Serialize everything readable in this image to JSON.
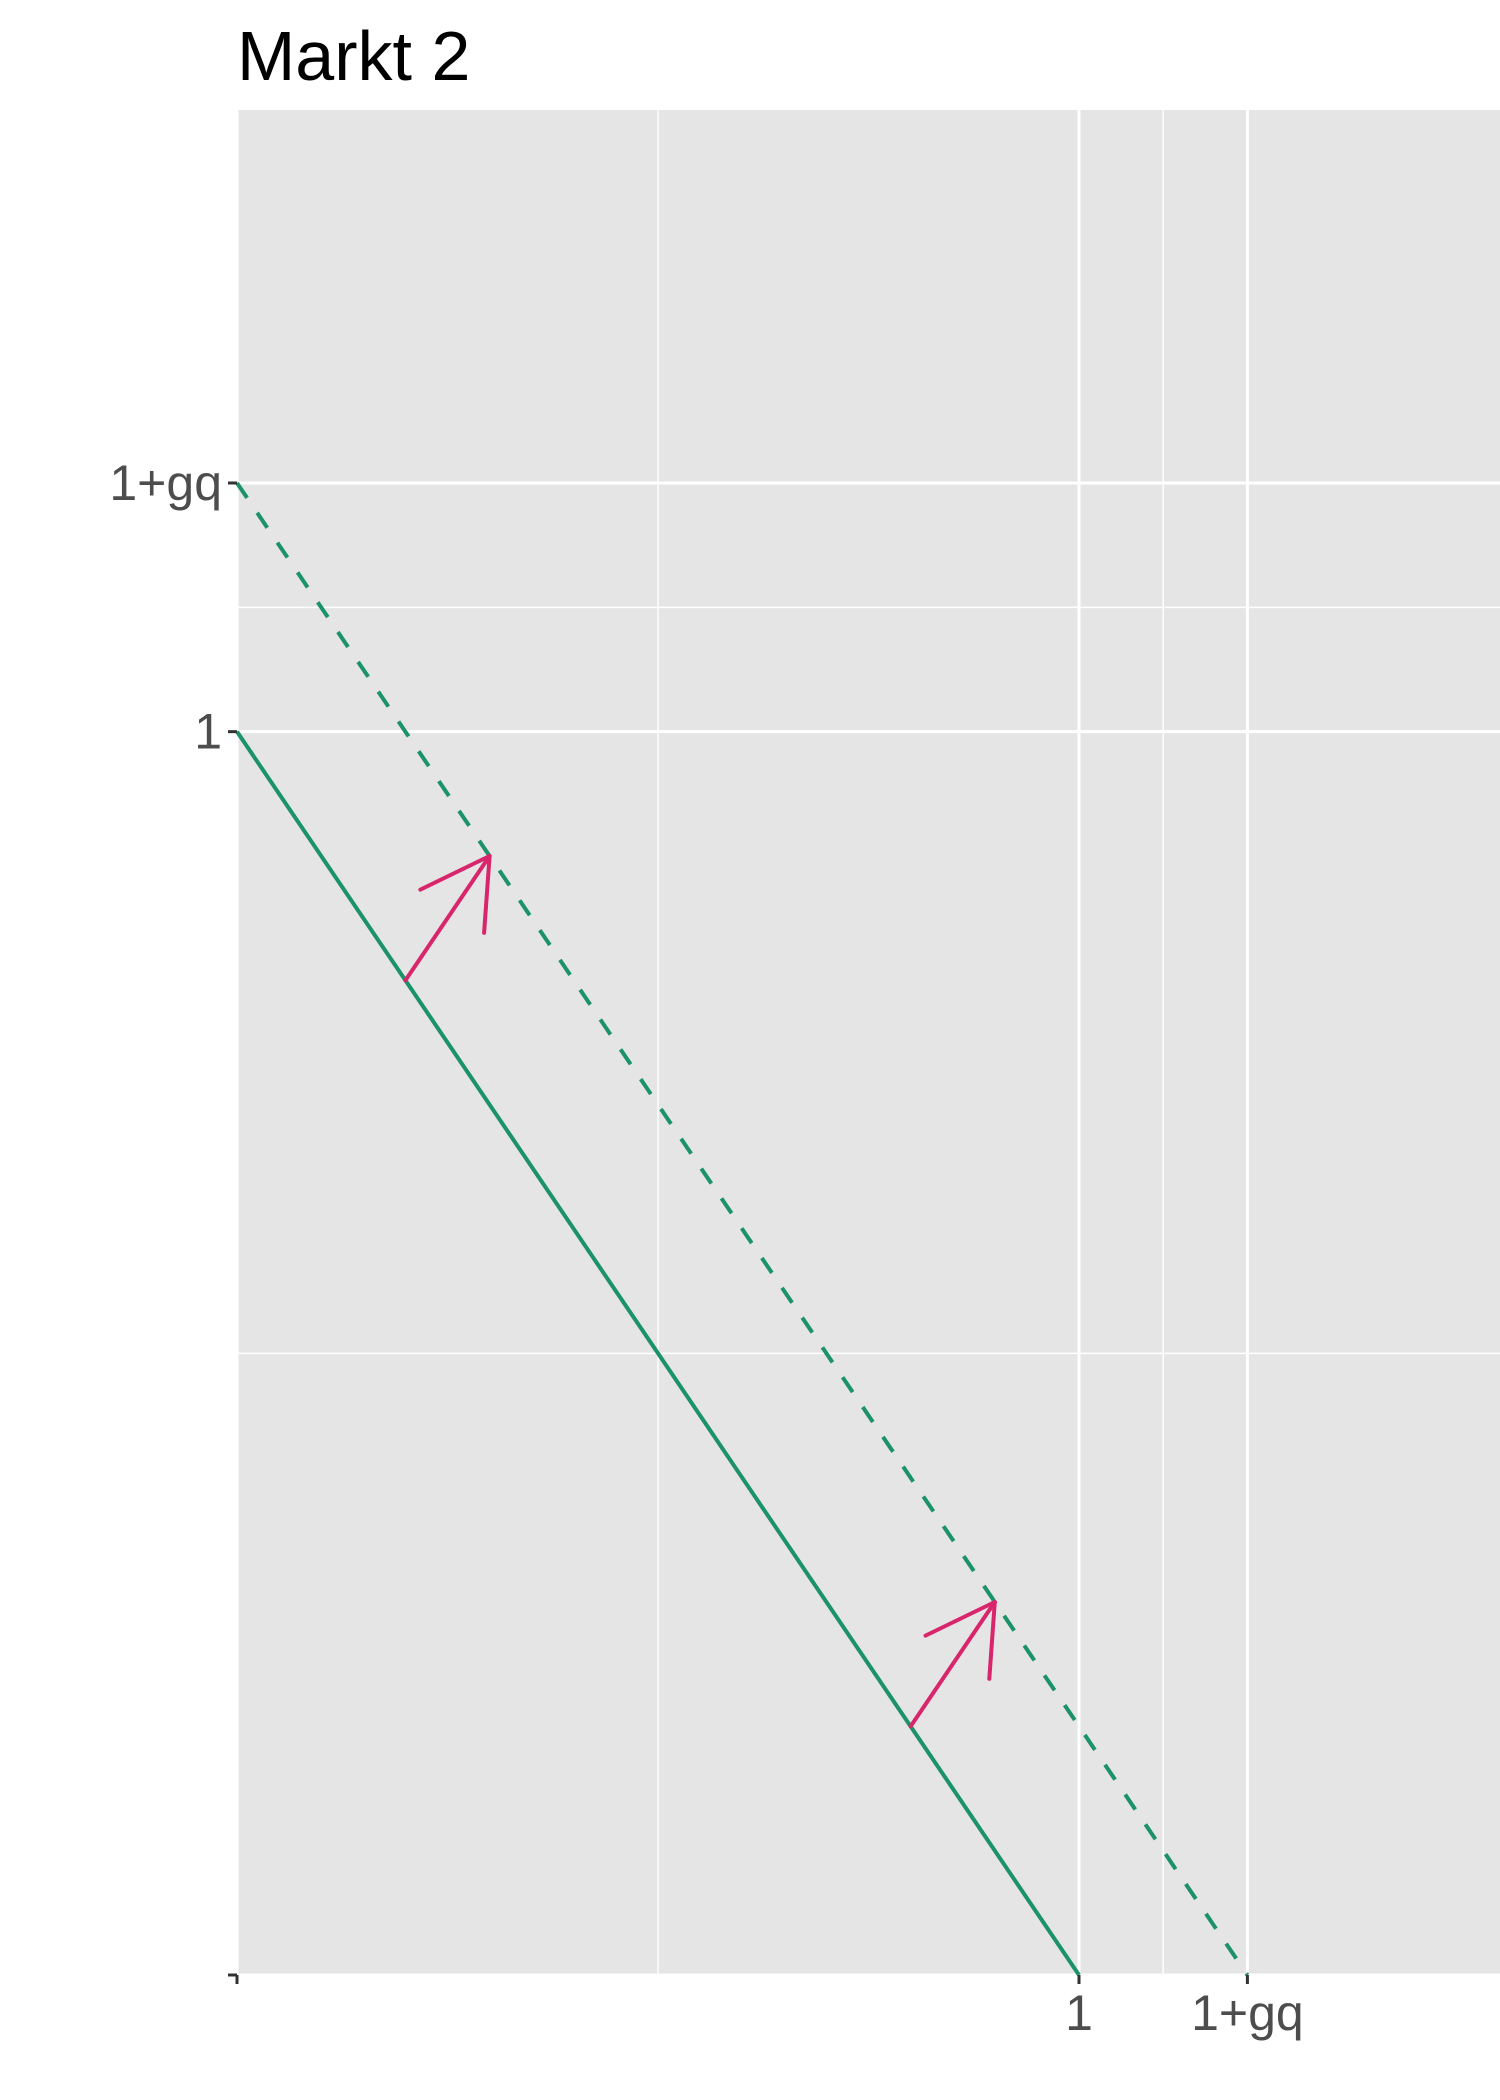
{
  "chart_data": {
    "type": "line",
    "title": "Markt 2",
    "xlabel": "",
    "ylabel": "",
    "xlim": [
      0,
      1.5
    ],
    "ylim": [
      0,
      1.5
    ],
    "x_ticks": [
      {
        "value": 0,
        "label": ""
      },
      {
        "value": 1,
        "label": "1"
      },
      {
        "value": 1.2,
        "label": "1+gq"
      }
    ],
    "y_ticks": [
      {
        "value": 0,
        "label": ""
      },
      {
        "value": 1,
        "label": "1"
      },
      {
        "value": 1.2,
        "label": "1+gq"
      }
    ],
    "grid": true,
    "colors": {
      "panel": "#e5e5e5",
      "grid": "#ffffff",
      "line": "#1b9268",
      "arrow": "#d8256b",
      "tick_text": "#4d4d4d",
      "tick_mark": "#333333"
    },
    "series": [
      {
        "style": "solid",
        "x": [
          0,
          1
        ],
        "y": [
          1,
          0
        ]
      },
      {
        "style": "dashed",
        "x": [
          0,
          1.2
        ],
        "y": [
          1.2,
          0
        ]
      }
    ],
    "arrows": [
      {
        "from": [
          0.2,
          0.8
        ],
        "to": [
          0.3,
          0.9
        ]
      },
      {
        "from": [
          0.8,
          0.2
        ],
        "to": [
          0.9,
          0.3
        ]
      }
    ]
  }
}
